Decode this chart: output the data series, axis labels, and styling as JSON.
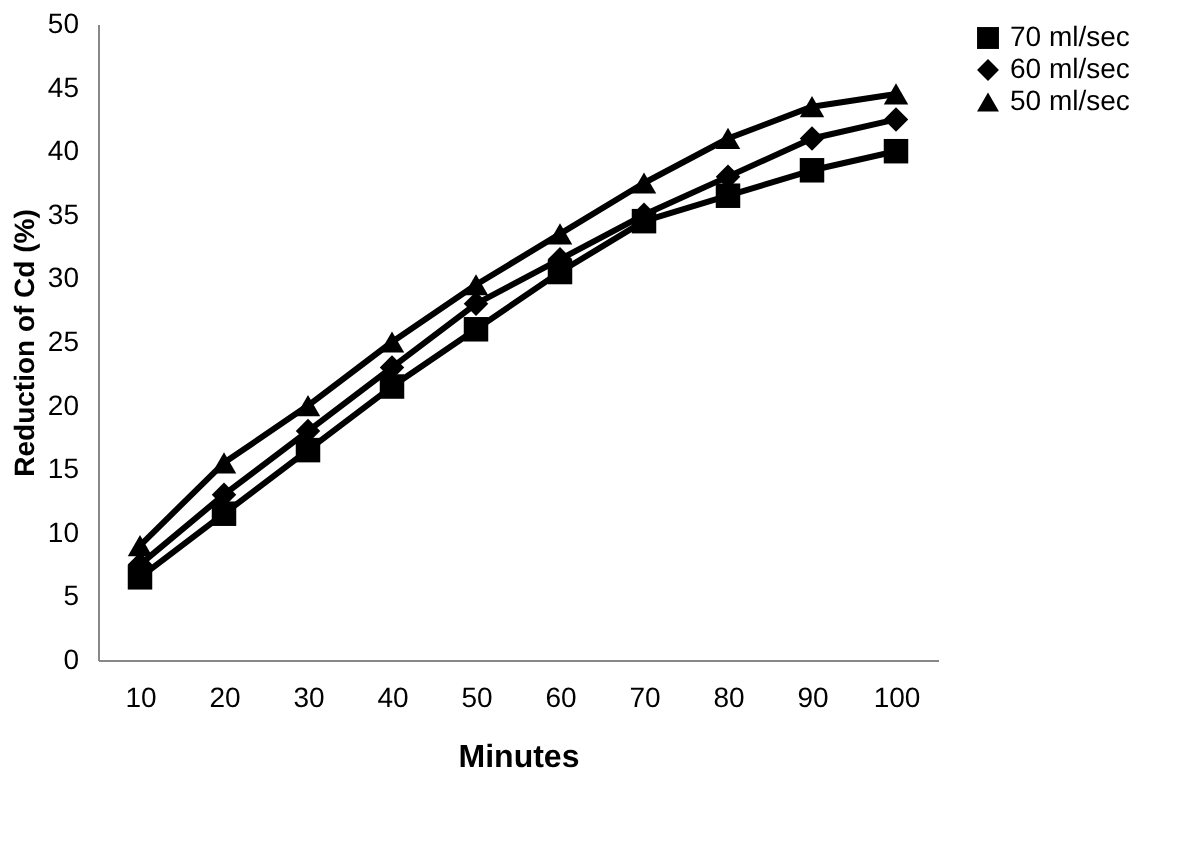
{
  "chart_data": {
    "type": "line",
    "xlabel": "Minutes",
    "ylabel": "Reduction of Cd (%)",
    "categories": [
      "10",
      "20",
      "30",
      "40",
      "50",
      "60",
      "70",
      "80",
      "90",
      "100"
    ],
    "ylim": [
      0,
      50
    ],
    "yticks": [
      0,
      5,
      10,
      15,
      20,
      25,
      30,
      35,
      40,
      45,
      50
    ],
    "grid": false,
    "legend": "right",
    "line_style": "solid",
    "series": [
      {
        "name": "70 ml/sec",
        "color": "#000000",
        "marker": "square",
        "values": [
          6.5,
          11.5,
          16.5,
          21.5,
          26,
          30.5,
          34.5,
          36.5,
          38.5,
          40
        ]
      },
      {
        "name": "60 ml/sec",
        "color": "#000000",
        "marker": "diamond",
        "values": [
          7.5,
          13,
          18,
          23,
          28,
          31.5,
          35,
          38,
          41,
          42.5
        ]
      },
      {
        "name": "50 ml/sec",
        "color": "#000000",
        "marker": "triangle",
        "values": [
          9,
          15.5,
          20,
          25,
          29.5,
          33.5,
          37.5,
          41,
          43.5,
          44.5
        ]
      }
    ]
  }
}
